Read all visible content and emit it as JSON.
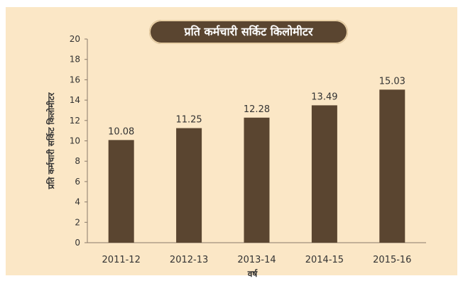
{
  "chart_data": {
    "type": "bar",
    "title": "प्रति कर्मचारी सर्किट किलोमीटर",
    "xlabel": "वर्ष",
    "ylabel": "प्रति कर्मचारी सर्किट किलोमीटर",
    "categories": [
      "2011-12",
      "2012-13",
      "2013-14",
      "2014-15",
      "2015-16"
    ],
    "values": [
      10.08,
      11.25,
      12.28,
      13.49,
      15.03
    ],
    "value_labels": [
      "10.08",
      "11.25",
      "12.28",
      "13.49",
      "15.03"
    ],
    "ylim": [
      0,
      20
    ],
    "yticks": [
      "0",
      "2",
      "4",
      "6",
      "8",
      "10",
      "12",
      "14",
      "16",
      "18",
      "20"
    ],
    "grid": false,
    "colors": {
      "bar": "#5a4530",
      "background": "#fbe7c6",
      "title_bg": "#5a4530"
    }
  }
}
